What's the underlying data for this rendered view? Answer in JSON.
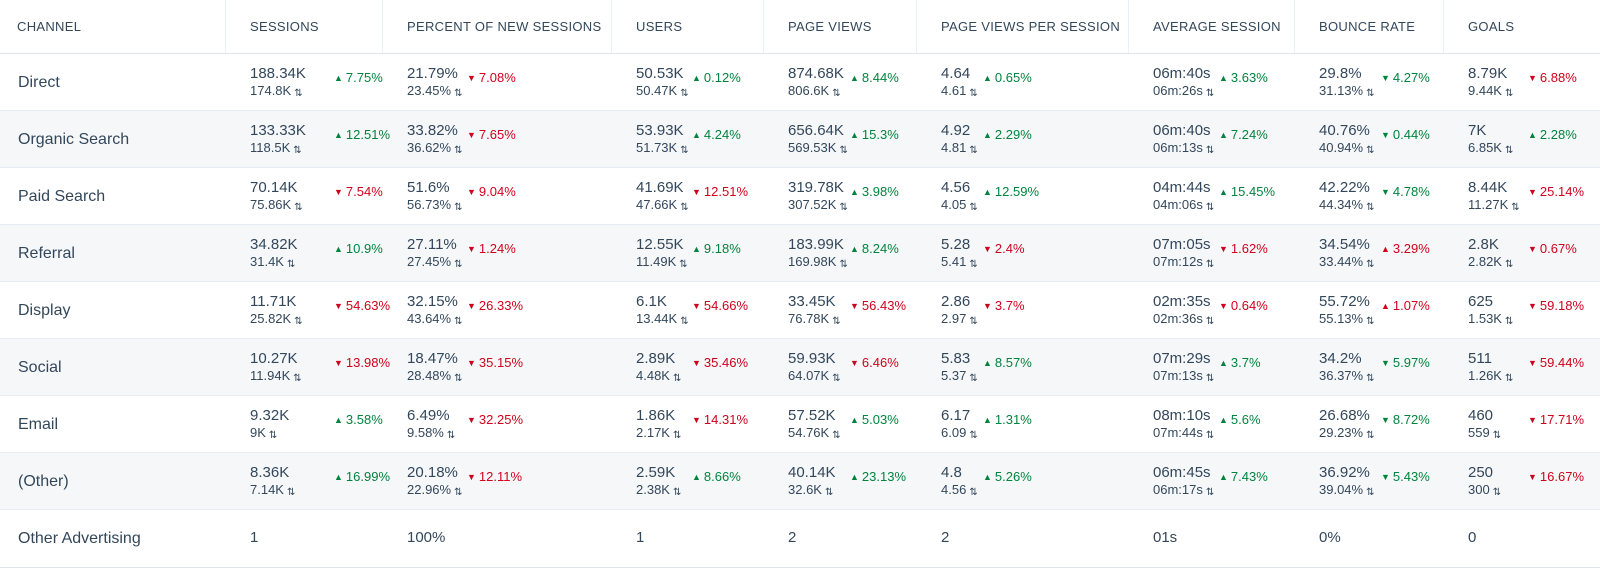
{
  "columns": [
    "CHANNEL",
    "SESSIONS",
    "PERCENT OF NEW SESSIONS",
    "USERS",
    "PAGE VIEWS",
    "PAGE VIEWS PER SESSION",
    "AVERAGE SESSION",
    "BOUNCE RATE",
    "GOALS"
  ],
  "colors": {
    "up": "#00843d",
    "down": "#d0021b",
    "text": "#33475b"
  },
  "rows": [
    {
      "channel": "Direct",
      "metrics": [
        {
          "v": "188.34K",
          "p": "174.8K",
          "c": "7.75%",
          "dir": "up"
        },
        {
          "v": "21.79%",
          "p": "23.45%",
          "c": "7.08%",
          "dir": "down"
        },
        {
          "v": "50.53K",
          "p": "50.47K",
          "c": "0.12%",
          "dir": "up"
        },
        {
          "v": "874.68K",
          "p": "806.6K",
          "c": "8.44%",
          "dir": "up"
        },
        {
          "v": "4.64",
          "p": "4.61",
          "c": "0.65%",
          "dir": "up"
        },
        {
          "v": "06m:40s",
          "p": "06m:26s",
          "c": "3.63%",
          "dir": "up"
        },
        {
          "v": "29.8%",
          "p": "31.13%",
          "c": "4.27%",
          "dir": "down",
          "good": true
        },
        {
          "v": "8.79K",
          "p": "9.44K",
          "c": "6.88%",
          "dir": "down"
        }
      ]
    },
    {
      "channel": "Organic Search",
      "metrics": [
        {
          "v": "133.33K",
          "p": "118.5K",
          "c": "12.51%",
          "dir": "up"
        },
        {
          "v": "33.82%",
          "p": "36.62%",
          "c": "7.65%",
          "dir": "down"
        },
        {
          "v": "53.93K",
          "p": "51.73K",
          "c": "4.24%",
          "dir": "up"
        },
        {
          "v": "656.64K",
          "p": "569.53K",
          "c": "15.3%",
          "dir": "up"
        },
        {
          "v": "4.92",
          "p": "4.81",
          "c": "2.29%",
          "dir": "up"
        },
        {
          "v": "06m:40s",
          "p": "06m:13s",
          "c": "7.24%",
          "dir": "up"
        },
        {
          "v": "40.76%",
          "p": "40.94%",
          "c": "0.44%",
          "dir": "down",
          "good": true
        },
        {
          "v": "7K",
          "p": "6.85K",
          "c": "2.28%",
          "dir": "up"
        }
      ]
    },
    {
      "channel": "Paid Search",
      "metrics": [
        {
          "v": "70.14K",
          "p": "75.86K",
          "c": "7.54%",
          "dir": "down"
        },
        {
          "v": "51.6%",
          "p": "56.73%",
          "c": "9.04%",
          "dir": "down"
        },
        {
          "v": "41.69K",
          "p": "47.66K",
          "c": "12.51%",
          "dir": "down"
        },
        {
          "v": "319.78K",
          "p": "307.52K",
          "c": "3.98%",
          "dir": "up"
        },
        {
          "v": "4.56",
          "p": "4.05",
          "c": "12.59%",
          "dir": "up"
        },
        {
          "v": "04m:44s",
          "p": "04m:06s",
          "c": "15.45%",
          "dir": "up"
        },
        {
          "v": "42.22%",
          "p": "44.34%",
          "c": "4.78%",
          "dir": "down",
          "good": true
        },
        {
          "v": "8.44K",
          "p": "11.27K",
          "c": "25.14%",
          "dir": "down"
        }
      ]
    },
    {
      "channel": "Referral",
      "metrics": [
        {
          "v": "34.82K",
          "p": "31.4K",
          "c": "10.9%",
          "dir": "up"
        },
        {
          "v": "27.11%",
          "p": "27.45%",
          "c": "1.24%",
          "dir": "down"
        },
        {
          "v": "12.55K",
          "p": "11.49K",
          "c": "9.18%",
          "dir": "up"
        },
        {
          "v": "183.99K",
          "p": "169.98K",
          "c": "8.24%",
          "dir": "up"
        },
        {
          "v": "5.28",
          "p": "5.41",
          "c": "2.4%",
          "dir": "down"
        },
        {
          "v": "07m:05s",
          "p": "07m:12s",
          "c": "1.62%",
          "dir": "down"
        },
        {
          "v": "34.54%",
          "p": "33.44%",
          "c": "3.29%",
          "dir": "up",
          "good": false
        },
        {
          "v": "2.8K",
          "p": "2.82K",
          "c": "0.67%",
          "dir": "down"
        }
      ]
    },
    {
      "channel": "Display",
      "metrics": [
        {
          "v": "11.71K",
          "p": "25.82K",
          "c": "54.63%",
          "dir": "down"
        },
        {
          "v": "32.15%",
          "p": "43.64%",
          "c": "26.33%",
          "dir": "down"
        },
        {
          "v": "6.1K",
          "p": "13.44K",
          "c": "54.66%",
          "dir": "down"
        },
        {
          "v": "33.45K",
          "p": "76.78K",
          "c": "56.43%",
          "dir": "down"
        },
        {
          "v": "2.86",
          "p": "2.97",
          "c": "3.7%",
          "dir": "down"
        },
        {
          "v": "02m:35s",
          "p": "02m:36s",
          "c": "0.64%",
          "dir": "down"
        },
        {
          "v": "55.72%",
          "p": "55.13%",
          "c": "1.07%",
          "dir": "up",
          "good": false
        },
        {
          "v": "625",
          "p": "1.53K",
          "c": "59.18%",
          "dir": "down"
        }
      ]
    },
    {
      "channel": "Social",
      "metrics": [
        {
          "v": "10.27K",
          "p": "11.94K",
          "c": "13.98%",
          "dir": "down"
        },
        {
          "v": "18.47%",
          "p": "28.48%",
          "c": "35.15%",
          "dir": "down"
        },
        {
          "v": "2.89K",
          "p": "4.48K",
          "c": "35.46%",
          "dir": "down"
        },
        {
          "v": "59.93K",
          "p": "64.07K",
          "c": "6.46%",
          "dir": "down"
        },
        {
          "v": "5.83",
          "p": "5.37",
          "c": "8.57%",
          "dir": "up"
        },
        {
          "v": "07m:29s",
          "p": "07m:13s",
          "c": "3.7%",
          "dir": "up"
        },
        {
          "v": "34.2%",
          "p": "36.37%",
          "c": "5.97%",
          "dir": "down",
          "good": true
        },
        {
          "v": "511",
          "p": "1.26K",
          "c": "59.44%",
          "dir": "down"
        }
      ]
    },
    {
      "channel": "Email",
      "metrics": [
        {
          "v": "9.32K",
          "p": "9K",
          "c": "3.58%",
          "dir": "up"
        },
        {
          "v": "6.49%",
          "p": "9.58%",
          "c": "32.25%",
          "dir": "down"
        },
        {
          "v": "1.86K",
          "p": "2.17K",
          "c": "14.31%",
          "dir": "down"
        },
        {
          "v": "57.52K",
          "p": "54.76K",
          "c": "5.03%",
          "dir": "up"
        },
        {
          "v": "6.17",
          "p": "6.09",
          "c": "1.31%",
          "dir": "up"
        },
        {
          "v": "08m:10s",
          "p": "07m:44s",
          "c": "5.6%",
          "dir": "up"
        },
        {
          "v": "26.68%",
          "p": "29.23%",
          "c": "8.72%",
          "dir": "down",
          "good": true
        },
        {
          "v": "460",
          "p": "559",
          "c": "17.71%",
          "dir": "down"
        }
      ]
    },
    {
      "channel": "(Other)",
      "metrics": [
        {
          "v": "8.36K",
          "p": "7.14K",
          "c": "16.99%",
          "dir": "up"
        },
        {
          "v": "20.18%",
          "p": "22.96%",
          "c": "12.11%",
          "dir": "down"
        },
        {
          "v": "2.59K",
          "p": "2.38K",
          "c": "8.66%",
          "dir": "up"
        },
        {
          "v": "40.14K",
          "p": "32.6K",
          "c": "23.13%",
          "dir": "up"
        },
        {
          "v": "4.8",
          "p": "4.56",
          "c": "5.26%",
          "dir": "up"
        },
        {
          "v": "06m:45s",
          "p": "06m:17s",
          "c": "7.43%",
          "dir": "up"
        },
        {
          "v": "36.92%",
          "p": "39.04%",
          "c": "5.43%",
          "dir": "down",
          "good": true
        },
        {
          "v": "250",
          "p": "300",
          "c": "16.67%",
          "dir": "down"
        }
      ]
    }
  ],
  "last_row": {
    "channel": "Other Advertising",
    "values": [
      "1",
      "100%",
      "1",
      "2",
      "2",
      "01s",
      "0%",
      "0"
    ]
  }
}
